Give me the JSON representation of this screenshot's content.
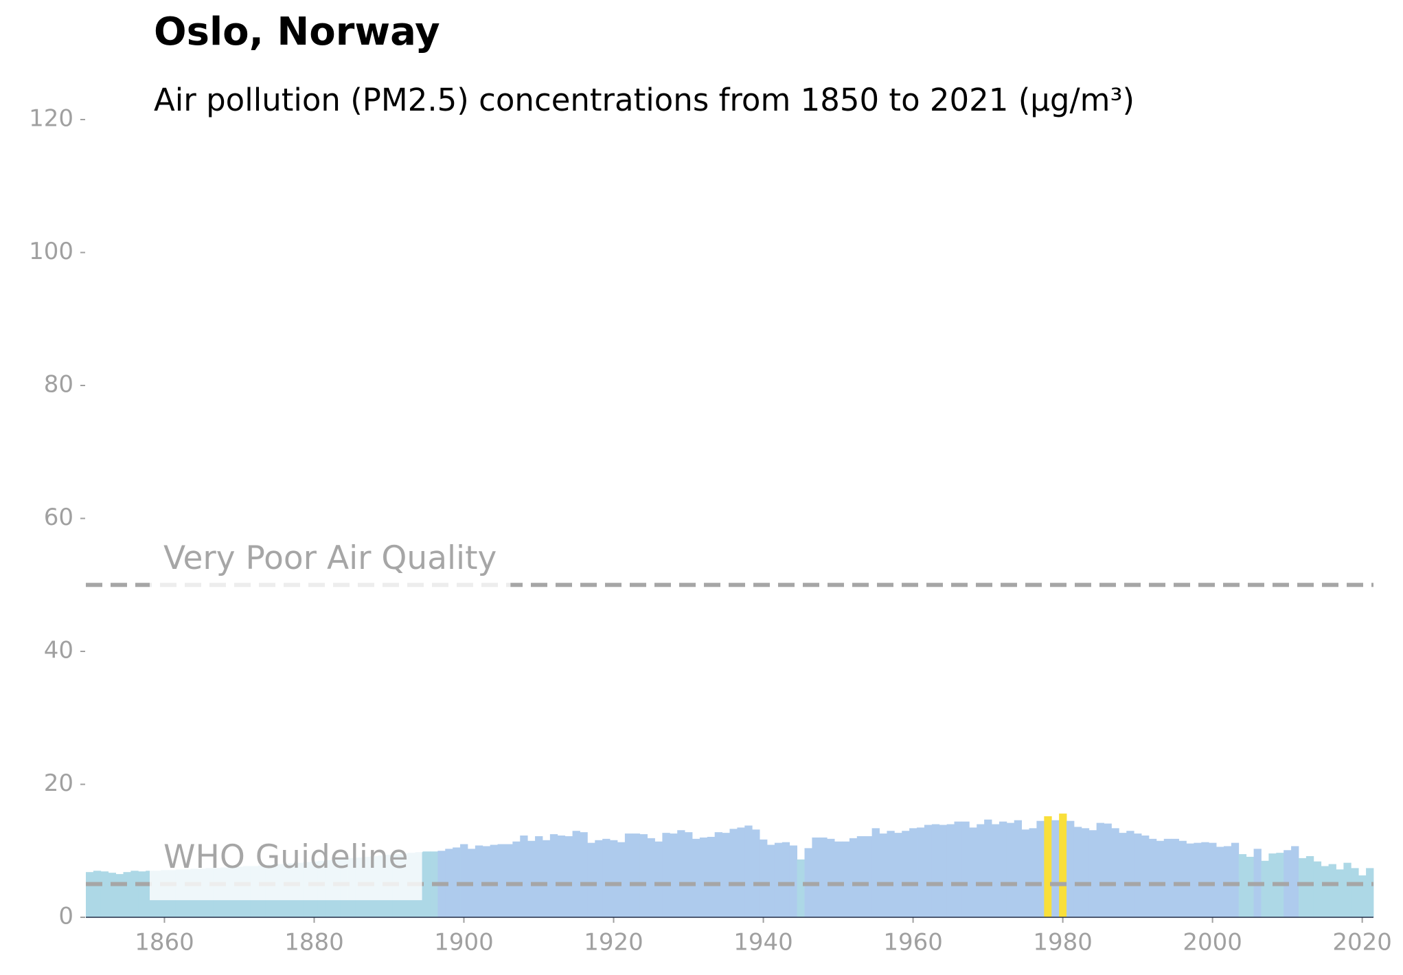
{
  "chart_data": {
    "type": "bar",
    "title": "Oslo, Norway",
    "subtitle": "Air pollution (PM2.5) concentrations from 1850 to 2021 (µg/m³)",
    "x": [
      1850,
      1851,
      1852,
      1853,
      1854,
      1855,
      1856,
      1857,
      1858,
      1859,
      1860,
      1861,
      1862,
      1863,
      1864,
      1865,
      1866,
      1867,
      1868,
      1869,
      1870,
      1871,
      1872,
      1873,
      1874,
      1875,
      1876,
      1877,
      1878,
      1879,
      1880,
      1881,
      1882,
      1883,
      1884,
      1885,
      1886,
      1887,
      1888,
      1889,
      1890,
      1891,
      1892,
      1893,
      1894,
      1895,
      1896,
      1897,
      1898,
      1899,
      1900,
      1901,
      1902,
      1903,
      1904,
      1905,
      1906,
      1907,
      1908,
      1909,
      1910,
      1911,
      1912,
      1913,
      1914,
      1915,
      1916,
      1917,
      1918,
      1919,
      1920,
      1921,
      1922,
      1923,
      1924,
      1925,
      1926,
      1927,
      1928,
      1929,
      1930,
      1931,
      1932,
      1933,
      1934,
      1935,
      1936,
      1937,
      1938,
      1939,
      1940,
      1941,
      1942,
      1943,
      1944,
      1945,
      1946,
      1947,
      1948,
      1949,
      1950,
      1951,
      1952,
      1953,
      1954,
      1955,
      1956,
      1957,
      1958,
      1959,
      1960,
      1961,
      1962,
      1963,
      1964,
      1965,
      1966,
      1967,
      1968,
      1969,
      1970,
      1971,
      1972,
      1973,
      1974,
      1975,
      1976,
      1977,
      1978,
      1979,
      1980,
      1981,
      1982,
      1983,
      1984,
      1985,
      1986,
      1987,
      1988,
      1989,
      1990,
      1991,
      1992,
      1993,
      1994,
      1995,
      1996,
      1997,
      1998,
      1999,
      2000,
      2001,
      2002,
      2003,
      2004,
      2005,
      2006,
      2007,
      2008,
      2009,
      2010,
      2011,
      2012,
      2013,
      2014,
      2015,
      2016,
      2017,
      2018,
      2019,
      2020,
      2021
    ],
    "values": [
      6.8,
      7.0,
      6.9,
      6.7,
      6.5,
      6.8,
      7.0,
      6.9,
      7.0,
      7.0,
      7.1,
      7.1,
      7.2,
      7.2,
      7.3,
      7.3,
      7.4,
      7.4,
      7.5,
      7.5,
      7.6,
      7.7,
      7.7,
      7.8,
      7.9,
      8.0,
      8.0,
      8.1,
      8.2,
      8.3,
      8.4,
      8.5,
      8.6,
      8.7,
      8.8,
      8.9,
      9.0,
      9.1,
      9.2,
      9.3,
      9.4,
      9.5,
      9.6,
      9.7,
      9.8,
      9.9,
      9.9,
      10.0,
      10.3,
      10.5,
      11.0,
      10.3,
      10.8,
      10.7,
      10.9,
      11.0,
      11.0,
      11.4,
      12.3,
      11.5,
      12.2,
      11.6,
      12.5,
      12.3,
      12.2,
      13.0,
      12.8,
      11.2,
      11.6,
      11.8,
      11.6,
      11.3,
      12.6,
      12.6,
      12.5,
      11.9,
      11.4,
      12.7,
      12.6,
      13.1,
      12.8,
      11.8,
      12.0,
      12.1,
      12.8,
      12.7,
      13.3,
      13.5,
      13.8,
      13.2,
      11.7,
      10.9,
      11.2,
      11.3,
      10.8,
      8.7,
      10.4,
      12.0,
      12.0,
      11.8,
      11.4,
      11.4,
      11.9,
      12.2,
      12.2,
      13.4,
      12.6,
      13.0,
      12.7,
      13.0,
      13.4,
      13.5,
      13.9,
      14.0,
      13.9,
      14.0,
      14.4,
      14.4,
      13.5,
      14.0,
      14.7,
      14.0,
      14.4,
      14.2,
      14.6,
      13.2,
      13.4,
      14.5,
      15.2,
      14.6,
      15.6,
      14.5,
      13.6,
      13.4,
      13.1,
      14.2,
      14.1,
      13.4,
      12.7,
      13.0,
      12.6,
      12.3,
      11.8,
      11.5,
      11.8,
      11.8,
      11.5,
      11.1,
      11.2,
      11.3,
      11.2,
      10.6,
      10.7,
      11.2,
      9.5,
      9.1,
      10.3,
      8.5,
      9.6,
      9.7,
      10.1,
      10.7,
      8.9,
      9.2,
      8.4,
      7.7,
      8.0,
      7.2,
      8.2,
      7.4,
      6.3,
      7.4
    ],
    "color_scale": {
      "breaks": [
        10,
        15
      ],
      "colors": [
        "#add8e6",
        "#aecbed",
        "#f9df3a"
      ]
    },
    "reference_lines": [
      {
        "value": 50,
        "label": "Very Poor Air Quality",
        "color": "#a6a6a6"
      },
      {
        "value": 5,
        "label": "WHO Guideline",
        "color": "#a6a6a6"
      }
    ],
    "xlim": [
      1849.5,
      2021.5
    ],
    "ylim": [
      0,
      120
    ],
    "xticks": [
      1860,
      1880,
      1900,
      1920,
      1940,
      1960,
      1980,
      2000,
      2020
    ],
    "yticks": [
      0,
      20,
      40,
      60,
      80,
      100,
      120
    ]
  }
}
